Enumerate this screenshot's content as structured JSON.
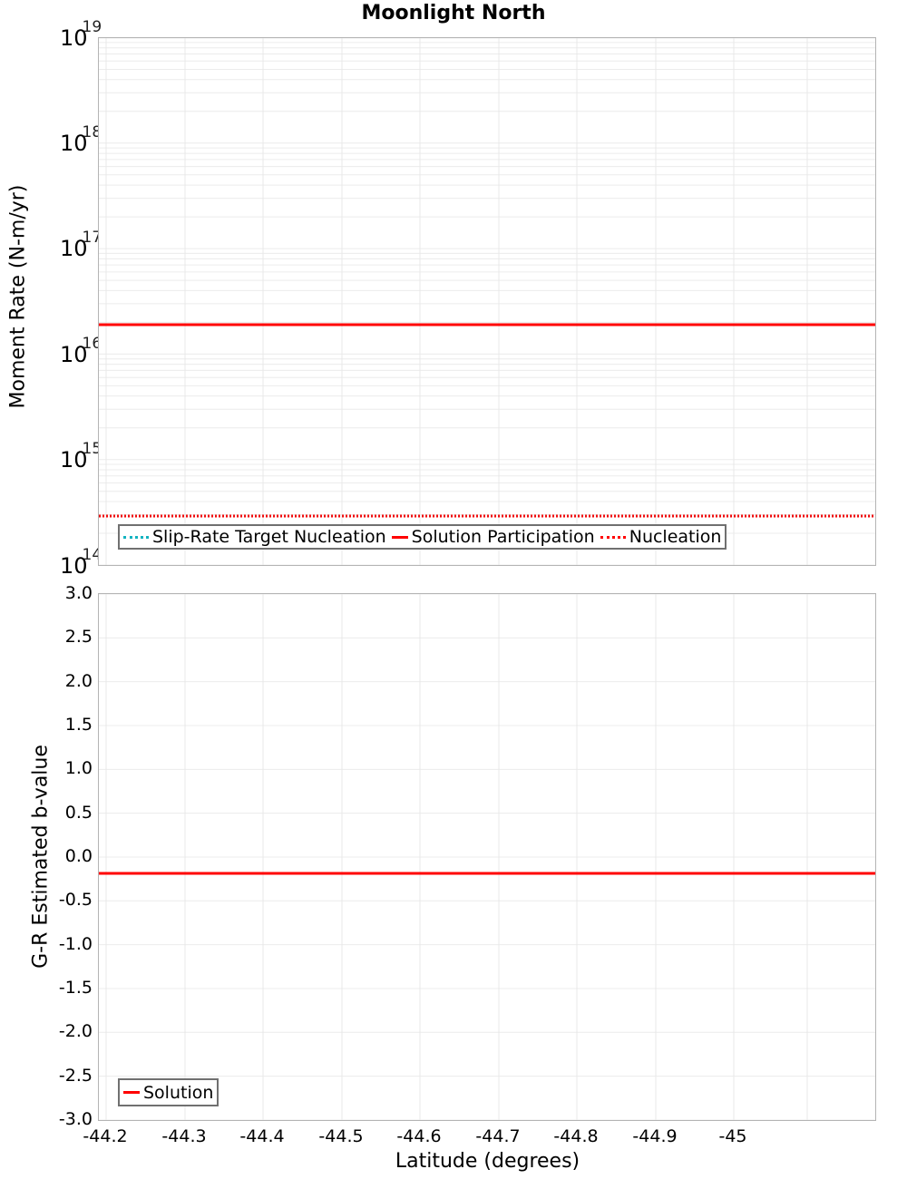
{
  "title": "Moonlight North",
  "top_panel": {
    "ylabel": "Moment Rate (N-m/yr)",
    "yticks": [
      {
        "base": "10",
        "exp": "19"
      },
      {
        "base": "10",
        "exp": "18"
      },
      {
        "base": "10",
        "exp": "17"
      },
      {
        "base": "10",
        "exp": "16"
      },
      {
        "base": "10",
        "exp": "15"
      },
      {
        "base": "10",
        "exp": "14"
      }
    ],
    "legend": [
      {
        "label": "Slip-Rate Target Nucleation",
        "style": "dotted",
        "color": "#12b3c0"
      },
      {
        "label": "Solution Participation",
        "style": "solid",
        "color": "#ff0000"
      },
      {
        "label": "Nucleation",
        "style": "dotted",
        "color": "#ff0000"
      }
    ]
  },
  "bottom_panel": {
    "ylabel": "G-R Estimated b-value",
    "yticks": [
      "3.0",
      "2.5",
      "2.0",
      "1.5",
      "1.0",
      "0.5",
      "0.0",
      "-0.5",
      "-1.0",
      "-1.5",
      "-2.0",
      "-2.5",
      "-3.0"
    ],
    "legend": [
      {
        "label": "Solution",
        "style": "solid",
        "color": "#ff0000"
      }
    ]
  },
  "xaxis": {
    "label": "Latitude (degrees)",
    "ticks": [
      "-44.2",
      "-44.3",
      "-44.4",
      "-44.5",
      "-44.6",
      "-44.7",
      "-44.8",
      "-44.9",
      "-45"
    ]
  },
  "chart_data": [
    {
      "type": "line",
      "title": "Moonlight North",
      "xlabel": "Latitude (degrees)",
      "ylabel": "Moment Rate (N-m/yr)",
      "yscale": "log",
      "ylim": [
        100000000000000.0,
        1e+19
      ],
      "xlim": [
        -44.19,
        -45.08
      ],
      "x": [
        -44.19,
        -44.28,
        -44.37,
        -44.46,
        -44.54,
        -44.63,
        -44.72,
        -44.81,
        -44.9,
        -44.99,
        -45.08
      ],
      "series": [
        {
          "name": "Slip-Rate Target Nucleation",
          "style": "dotted",
          "color": "#12b3c0",
          "values": [
            290000000000000.0,
            290000000000000.0,
            290000000000000.0,
            290000000000000.0,
            290000000000000.0,
            290000000000000.0,
            290000000000000.0,
            290000000000000.0,
            290000000000000.0,
            290000000000000.0,
            290000000000000.0
          ]
        },
        {
          "name": "Solution Participation",
          "style": "solid",
          "color": "#ff0000",
          "values": [
            1.9e+16,
            1.9e+16,
            1.9e+16,
            1.9e+16,
            1.9e+16,
            1.9e+16,
            1.9e+16,
            1.9e+16,
            1.9e+16,
            1.9e+16,
            1.9e+16
          ]
        },
        {
          "name": "Nucleation",
          "style": "dotted",
          "color": "#ff0000",
          "values": [
            290000000000000.0,
            290000000000000.0,
            290000000000000.0,
            290000000000000.0,
            290000000000000.0,
            290000000000000.0,
            290000000000000.0,
            290000000000000.0,
            290000000000000.0,
            290000000000000.0,
            290000000000000.0
          ]
        }
      ],
      "legend_position": "lower left",
      "grid": true
    },
    {
      "type": "line",
      "title": "",
      "xlabel": "Latitude (degrees)",
      "ylabel": "G-R Estimated b-value",
      "ylim": [
        -3.0,
        3.0
      ],
      "xlim": [
        -44.19,
        -45.08
      ],
      "x": [
        -44.19,
        -44.28,
        -44.37,
        -44.46,
        -44.54,
        -44.63,
        -44.72,
        -44.81,
        -44.9,
        -44.99,
        -45.08
      ],
      "series": [
        {
          "name": "Solution",
          "style": "solid",
          "color": "#ff0000",
          "values": [
            -0.19,
            -0.19,
            -0.19,
            -0.19,
            -0.19,
            -0.19,
            -0.19,
            -0.19,
            -0.19,
            -0.19,
            -0.19
          ]
        }
      ],
      "legend_position": "lower left",
      "grid": true
    }
  ]
}
